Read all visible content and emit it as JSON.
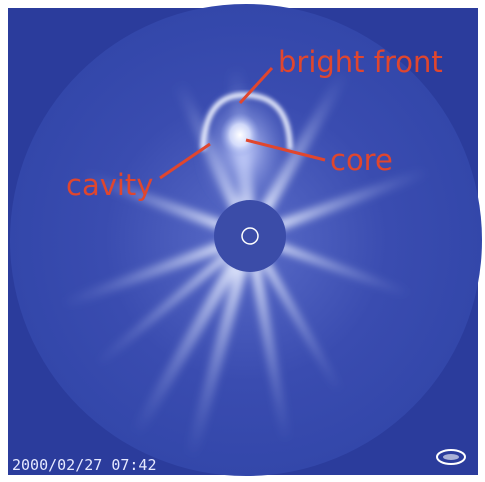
{
  "annotations": {
    "bright_front": "bright front",
    "core": "core",
    "cavity": "cavity"
  },
  "timestamp": "2000/02/27 07:42"
}
